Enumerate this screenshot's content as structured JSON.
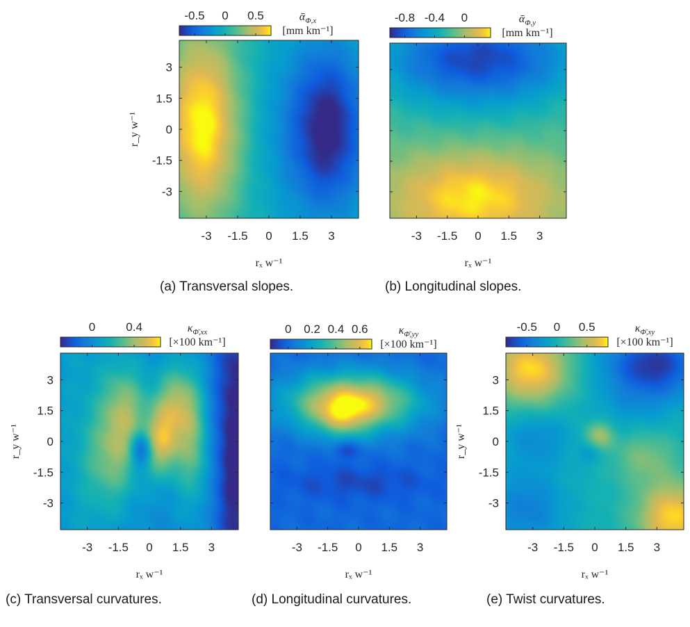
{
  "chart_data": [
    {
      "id": "a",
      "type": "heatmap",
      "caption": "(a) Transversal slopes.",
      "colorbar": {
        "label_symbol": "ᾱ",
        "label_sub": "Φ,x",
        "unit": "[mm km⁻¹]",
        "range": [
          -0.75,
          0.75
        ],
        "ticks": [
          -0.5,
          0,
          0.5
        ],
        "tick_labels": [
          "-0.5",
          "0",
          "0.5"
        ]
      },
      "xlabel": "rₓ w⁻¹",
      "ylabel": "r_y w⁻¹",
      "xlim": [
        -4.3,
        4.3
      ],
      "ylim": [
        -4.3,
        4.3
      ],
      "xticks": [
        -3,
        -1.5,
        0,
        1.5,
        3
      ],
      "xtick_labels": [
        "-3",
        "-1.5",
        "0",
        "1.5",
        "3"
      ],
      "yticks": [
        3,
        1.5,
        0,
        -1.5,
        -3
      ],
      "ytick_labels": [
        "3",
        "1.5",
        "0",
        "-1.5",
        "-3"
      ],
      "show_xlabel": true,
      "show_ylabel": true,
      "blobs": [
        {
          "x": -3.2,
          "y": 0.2,
          "sx": 1.3,
          "sy": 3.2,
          "amp": 0.78
        },
        {
          "x": 2.8,
          "y": 0.0,
          "sx": 1.4,
          "sy": 3.0,
          "amp": -0.8
        },
        {
          "x": 0.2,
          "y": 0.0,
          "sx": 1.2,
          "sy": 4.0,
          "amp": -0.1
        }
      ]
    },
    {
      "id": "b",
      "type": "heatmap",
      "caption": "(b) Longitudinal slopes.",
      "colorbar": {
        "label_symbol": "ᾱ",
        "label_sub": "Φ,y",
        "unit": "[mm km⁻¹]",
        "range": [
          -1.0,
          0.35
        ],
        "ticks": [
          -0.8,
          -0.4,
          0
        ],
        "tick_labels": [
          "-0.8",
          "-0.4",
          "0"
        ]
      },
      "xlabel": "rₓ w⁻¹",
      "ylabel": "",
      "xlim": [
        -4.3,
        4.3
      ],
      "ylim": [
        -4.3,
        4.3
      ],
      "xticks": [
        -3,
        -1.5,
        0,
        1.5,
        3
      ],
      "xtick_labels": [
        "-3",
        "-1.5",
        "0",
        "1.5",
        "3"
      ],
      "yticks": [
        3,
        1.5,
        0,
        -1.5,
        -3
      ],
      "ytick_labels": [],
      "show_xlabel": true,
      "show_ylabel": false,
      "blobs": [
        {
          "x": 0.0,
          "y": 3.6,
          "sx": 3.5,
          "sy": 1.6,
          "amp": -0.7
        },
        {
          "x": -0.2,
          "y": -3.2,
          "sx": 3.0,
          "sy": 1.7,
          "amp": 0.55
        },
        {
          "x": 0.0,
          "y": 0.0,
          "sx": 6.0,
          "sy": 6.0,
          "amp": -0.25
        }
      ]
    },
    {
      "id": "c",
      "type": "heatmap",
      "caption": "(c) Transversal curvatures.",
      "colorbar": {
        "label_symbol": "κ",
        "label_sub": "Φ̄,xx",
        "unit": "[×100 km⁻¹]",
        "range": [
          -0.3,
          0.65
        ],
        "ticks": [
          0,
          0.4
        ],
        "tick_labels": [
          "0",
          "0.4"
        ]
      },
      "xlabel": "rₓ w⁻¹",
      "ylabel": "r_y w⁻¹",
      "xlim": [
        -4.3,
        4.3
      ],
      "ylim": [
        -4.3,
        4.3
      ],
      "xticks": [
        -3,
        -1.5,
        0,
        1.5,
        3
      ],
      "xtick_labels": [
        "-3",
        "-1.5",
        "0",
        "1.5",
        "3"
      ],
      "yticks": [
        3,
        1.5,
        0,
        -1.5,
        -3
      ],
      "ytick_labels": [
        "3",
        "1.5",
        "0",
        "-1.5",
        "-3"
      ],
      "show_xlabel": true,
      "show_ylabel": true,
      "blobs": [
        {
          "x": -1.2,
          "y": 1.5,
          "sx": 0.8,
          "sy": 1.6,
          "amp": 0.35
        },
        {
          "x": 0.6,
          "y": 0.0,
          "sx": 0.6,
          "sy": 1.2,
          "amp": 0.45
        },
        {
          "x": 1.3,
          "y": 1.9,
          "sx": 0.7,
          "sy": 1.3,
          "amp": 0.35
        },
        {
          "x": 2.1,
          "y": -0.2,
          "sx": 0.6,
          "sy": 2.0,
          "amp": 0.3
        },
        {
          "x": -1.8,
          "y": -1.0,
          "sx": 0.9,
          "sy": 1.6,
          "amp": 0.25
        },
        {
          "x": -0.4,
          "y": -0.4,
          "sx": 0.35,
          "sy": 0.6,
          "amp": -0.35
        },
        {
          "x": 4.2,
          "y": 0.0,
          "sx": 0.8,
          "sy": 6.0,
          "amp": -0.35
        },
        {
          "x": -3.2,
          "y": 0.0,
          "sx": 1.2,
          "sy": 6.0,
          "amp": 0.1
        }
      ]
    },
    {
      "id": "d",
      "type": "heatmap",
      "caption": "(d) Longitudinal curvatures.",
      "colorbar": {
        "label_symbol": "κ",
        "label_sub": "Φ̄,yy",
        "unit": "[×100 km⁻¹]",
        "range": [
          -0.15,
          0.7
        ],
        "ticks": [
          0,
          0.2,
          0.4,
          0.6
        ],
        "tick_labels": [
          "0",
          "0.2",
          "0.4",
          "0.6"
        ]
      },
      "xlabel": "rₓ w⁻¹",
      "ylabel": "",
      "xlim": [
        -4.3,
        4.3
      ],
      "ylim": [
        -4.3,
        4.3
      ],
      "xticks": [
        -3,
        -1.5,
        0,
        1.5,
        3
      ],
      "xtick_labels": [
        "-3",
        "-1.5",
        "0",
        "1.5",
        "3"
      ],
      "yticks": [
        3,
        1.5,
        0,
        -1.5,
        -3
      ],
      "ytick_labels": [],
      "show_xlabel": true,
      "show_ylabel": false,
      "blobs": [
        {
          "x": -0.3,
          "y": 1.9,
          "sx": 2.2,
          "sy": 1.0,
          "amp": 0.65
        },
        {
          "x": -0.8,
          "y": 1.1,
          "sx": 0.9,
          "sy": 0.7,
          "amp": 0.2
        },
        {
          "x": -0.6,
          "y": -0.4,
          "sx": 0.5,
          "sy": 0.3,
          "amp": -0.12
        },
        {
          "x": 0.0,
          "y": -2.0,
          "sx": 2.5,
          "sy": 0.6,
          "amp": -0.08
        }
      ]
    },
    {
      "id": "e",
      "type": "heatmap",
      "caption": "(e) Twist curvatures.",
      "colorbar": {
        "label_symbol": "κ",
        "label_sub": "Φ̄,xy",
        "unit": "[×100 km⁻¹]",
        "range": [
          -0.85,
          0.85
        ],
        "ticks": [
          -0.5,
          0,
          0.5
        ],
        "tick_labels": [
          "-0.5",
          "0",
          "0.5"
        ]
      },
      "xlabel": "rₓ w⁻¹",
      "ylabel": "r_y w⁻¹",
      "xlim": [
        -4.3,
        4.3
      ],
      "ylim": [
        -4.3,
        4.3
      ],
      "xticks": [
        -3,
        -1.5,
        0,
        1.5,
        3
      ],
      "xtick_labels": [
        "-3",
        "-1.5",
        "0",
        "1.5",
        "3"
      ],
      "yticks": [
        3,
        1.5,
        0,
        -1.5,
        -3
      ],
      "ytick_labels": [
        "3",
        "1.5",
        "0",
        "-1.5",
        "-3"
      ],
      "show_xlabel": true,
      "show_ylabel": true,
      "blobs": [
        {
          "x": -3.1,
          "y": 3.5,
          "sx": 1.3,
          "sy": 1.2,
          "amp": 0.8
        },
        {
          "x": 2.8,
          "y": 3.7,
          "sx": 1.7,
          "sy": 1.2,
          "amp": -0.8
        },
        {
          "x": 3.8,
          "y": -3.7,
          "sx": 1.2,
          "sy": 1.2,
          "amp": 0.8
        },
        {
          "x": -3.3,
          "y": -3.3,
          "sx": 1.4,
          "sy": 1.4,
          "amp": -0.4
        },
        {
          "x": -2.8,
          "y": 0.2,
          "sx": 1.3,
          "sy": 1.0,
          "amp": -0.3
        },
        {
          "x": 0.2,
          "y": 0.3,
          "sx": 0.5,
          "sy": 0.5,
          "amp": 0.45
        },
        {
          "x": 2.4,
          "y": -0.8,
          "sx": 1.0,
          "sy": 0.9,
          "amp": 0.3
        },
        {
          "x": 1.7,
          "y": 1.5,
          "sx": 1.4,
          "sy": 0.8,
          "amp": -0.15
        },
        {
          "x": -0.2,
          "y": -0.6,
          "sx": 0.4,
          "sy": 0.4,
          "amp": -0.2
        }
      ]
    }
  ]
}
